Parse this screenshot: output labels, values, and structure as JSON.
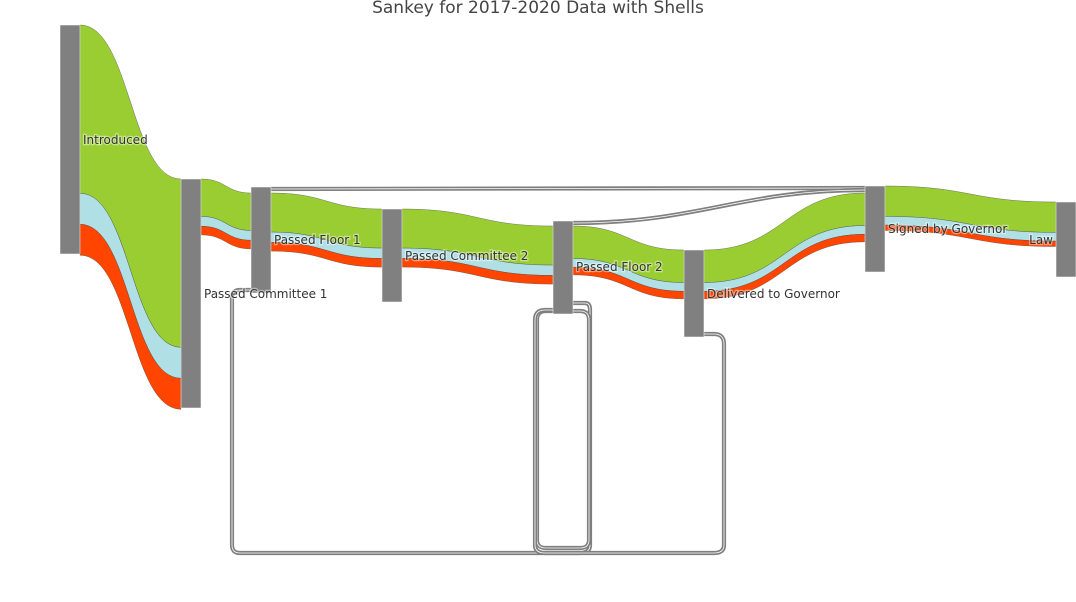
{
  "title": "Sankey for 2017-2020 Data with Shells",
  "colors": {
    "node": "#808080",
    "link_outline": "#444444",
    "loop": "#7f7f7f"
  },
  "chart_data": {
    "type": "sankey",
    "title": "Sankey for 2017-2020 Data with Shells",
    "nodes": [
      "Introduced",
      "Passed Committee 1",
      "Passed Floor 1",
      "Passed Committee 2",
      "Passed Floor 2",
      "Delivered to Governor",
      "Signed by Governor",
      "Law"
    ],
    "link_categories": [
      {
        "color": "#9acd32"
      },
      {
        "color": "#b0e0e6"
      },
      {
        "color": "#ff4500"
      }
    ],
    "links": [
      {
        "source": "Introduced",
        "target": "Passed Committee 1",
        "values": [
          310,
          57,
          57
        ]
      },
      {
        "source": "Passed Committee 1",
        "target": "Passed Floor 1",
        "values": [
          69,
          18,
          16
        ]
      },
      {
        "source": "Passed Floor 1",
        "target": "Passed Committee 2",
        "values": [
          72,
          19,
          16
        ]
      },
      {
        "source": "Passed Committee 2",
        "target": "Passed Floor 2",
        "values": [
          72,
          19,
          16
        ]
      },
      {
        "source": "Passed Floor 2",
        "target": "Delivered to Governor",
        "values": [
          60,
          16,
          14
        ]
      },
      {
        "source": "Delivered to Governor",
        "target": "Signed by Governor",
        "values": [
          60,
          16,
          14
        ]
      },
      {
        "source": "Signed by Governor",
        "target": "Law",
        "values": [
          56,
          16,
          10
        ]
      },
      {
        "source": "Passed Floor 1",
        "target": "Signed by Governor",
        "values": [
          4,
          0,
          0
        ]
      },
      {
        "source": "Passed Floor 2",
        "target": "Signed by Governor",
        "values": [
          4,
          0,
          0
        ]
      },
      {
        "source": "Passed Floor 2",
        "target": "Passed Committee 1",
        "values": [
          4,
          0,
          0
        ]
      },
      {
        "source": "Passed Floor 2",
        "target": "Passed Floor 2",
        "values": [
          4,
          0,
          0
        ]
      },
      {
        "source": "Delivered to Governor",
        "target": "Passed Floor 2",
        "values": [
          4,
          0,
          0
        ]
      }
    ]
  }
}
